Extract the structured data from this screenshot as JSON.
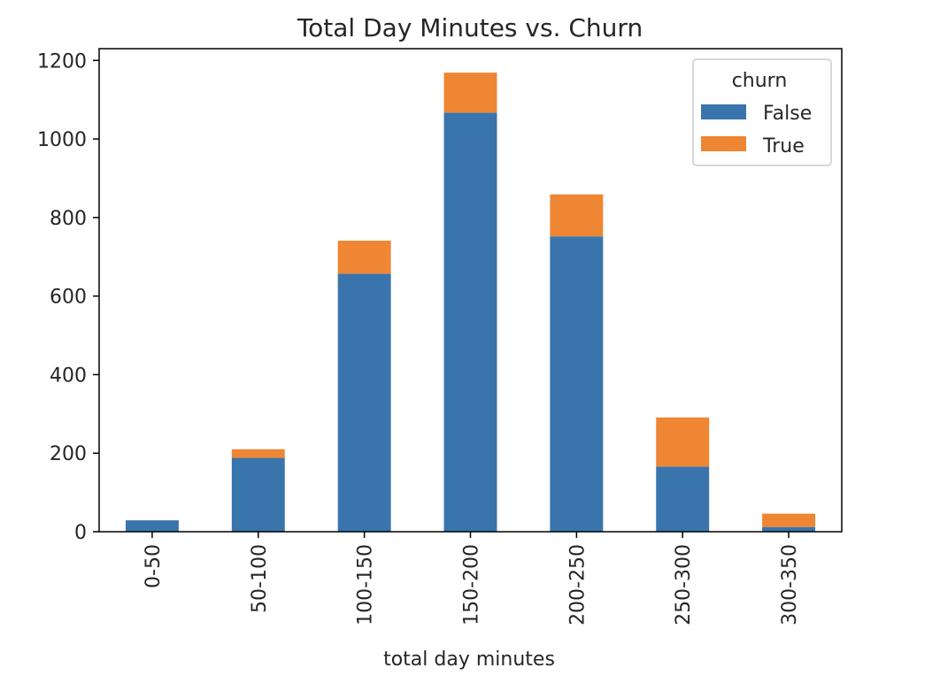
{
  "chart_data": {
    "type": "bar",
    "stacked": true,
    "title": "Total Day Minutes vs. Churn",
    "xlabel": "total day minutes",
    "ylabel": "",
    "categories": [
      "0-50",
      "50-100",
      "100-150",
      "150-200",
      "200-250",
      "250-300",
      "300-350"
    ],
    "series": [
      {
        "name": "False",
        "color": "#3a74ad",
        "values": [
          29,
          188,
          657,
          1067,
          752,
          166,
          12
        ]
      },
      {
        "name": "True",
        "color": "#ee8634",
        "values": [
          0,
          22,
          84,
          102,
          107,
          125,
          34
        ]
      }
    ],
    "ylim": [
      0,
      1230
    ],
    "yticks": [
      0,
      200,
      400,
      600,
      800,
      1000,
      1200
    ],
    "legend": {
      "title": "churn",
      "position": "top-right"
    },
    "grid": false
  }
}
